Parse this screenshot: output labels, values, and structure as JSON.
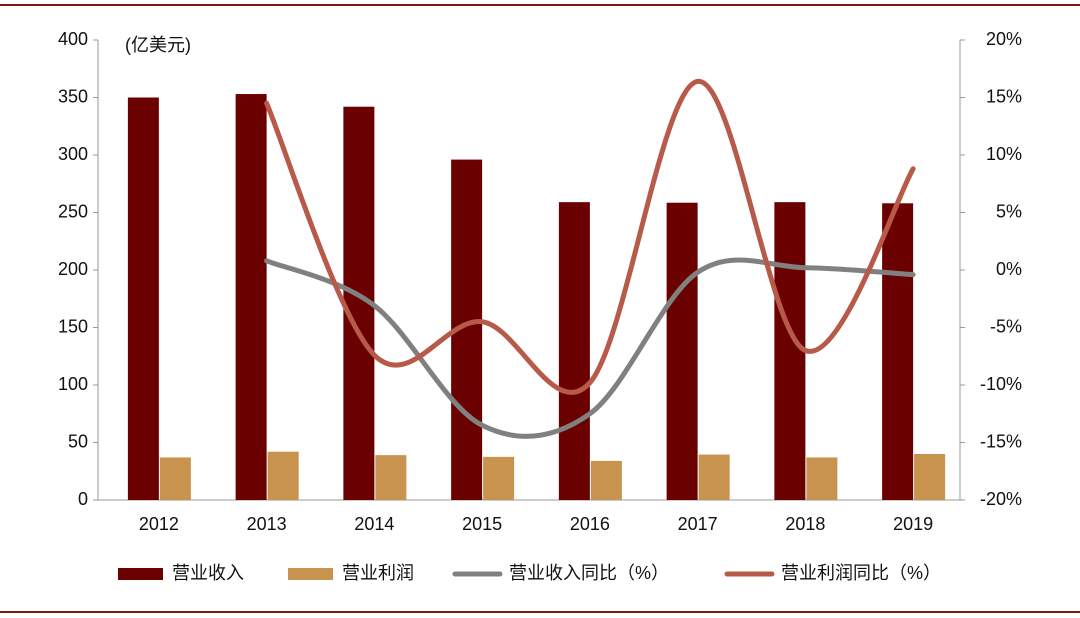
{
  "chart_data": {
    "type": "bar",
    "y_label": "(亿美元)",
    "categories": [
      "2012",
      "2013",
      "2014",
      "2015",
      "2016",
      "2017",
      "2018",
      "2019"
    ],
    "ylim": [
      0,
      400
    ],
    "yticks": [
      0,
      50,
      100,
      150,
      200,
      250,
      300,
      350,
      400
    ],
    "y2lim": [
      -20,
      20
    ],
    "y2ticks": [
      {
        "value": -20,
        "label": "-20%"
      },
      {
        "value": -15,
        "label": "-15%"
      },
      {
        "value": -10,
        "label": "-10%"
      },
      {
        "value": -5,
        "label": "-5%"
      },
      {
        "value": 0,
        "label": "0%"
      },
      {
        "value": 5,
        "label": "5%"
      },
      {
        "value": 10,
        "label": "10%"
      },
      {
        "value": 15,
        "label": "15%"
      },
      {
        "value": 20,
        "label": "20%"
      }
    ],
    "series": [
      {
        "name": "营业收入",
        "type": "bar",
        "color": "#6b0000",
        "values": [
          350,
          353,
          342,
          296,
          259,
          258.5,
          259,
          258
        ]
      },
      {
        "name": "营业利润",
        "type": "bar",
        "color": "#c8924f",
        "values": [
          37,
          42,
          39,
          37.5,
          34,
          39.5,
          37,
          40
        ]
      },
      {
        "name": "营业收入同比（%）",
        "type": "line",
        "axis": "y2",
        "color": "#808080",
        "values": [
          null,
          0.8,
          -3.1,
          -13.5,
          -12.5,
          -0.2,
          0.2,
          -0.4
        ]
      },
      {
        "name": "营业利润同比（%）",
        "type": "line",
        "axis": "y2",
        "color": "#b85a4a",
        "values": [
          null,
          14.5,
          -7.4,
          -4.5,
          -9.8,
          16.4,
          -7.0,
          8.8
        ]
      }
    ],
    "legend": "bottom"
  }
}
